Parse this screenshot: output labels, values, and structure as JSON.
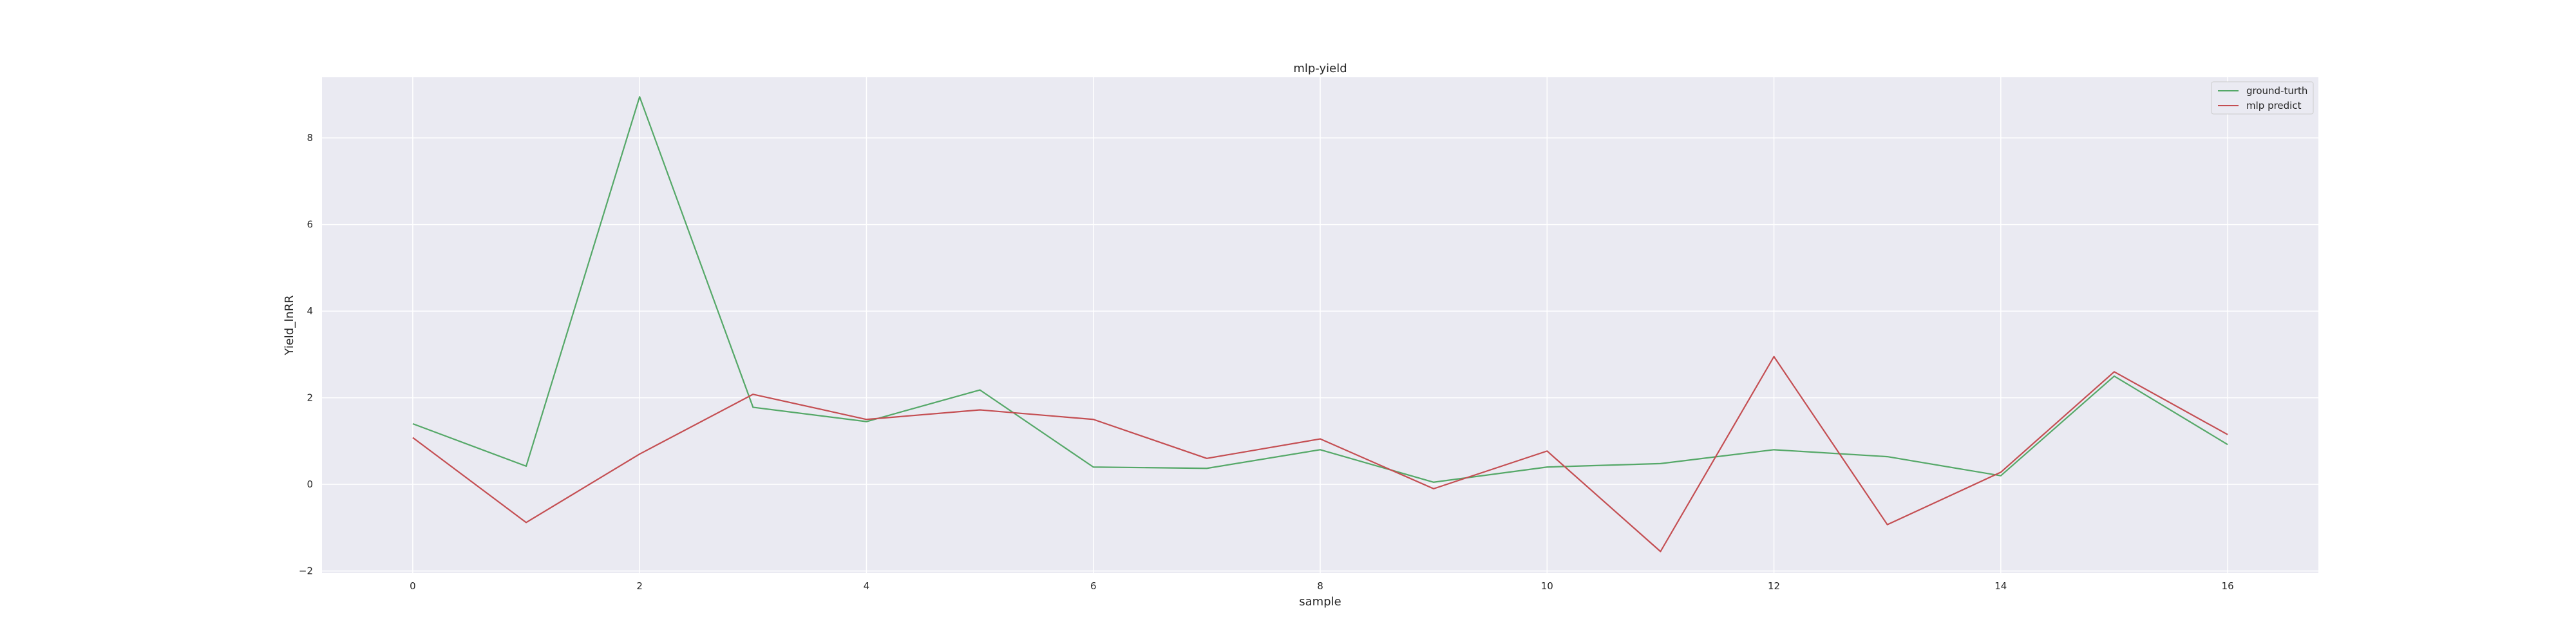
{
  "chart_data": {
    "type": "line",
    "title": "mlp-yield",
    "xlabel": "sample",
    "ylabel": "Yield_lnRR",
    "x": [
      0,
      1,
      2,
      3,
      4,
      5,
      6,
      7,
      8,
      9,
      10,
      11,
      12,
      13,
      14,
      15,
      16
    ],
    "x_ticks": [
      0,
      2,
      4,
      6,
      8,
      10,
      12,
      14,
      16
    ],
    "x_tick_labels": [
      "0",
      "2",
      "4",
      "6",
      "8",
      "10",
      "12",
      "14",
      "16"
    ],
    "y_ticks": [
      -2,
      0,
      2,
      4,
      6,
      8
    ],
    "y_tick_labels": [
      "−2",
      "0",
      "2",
      "4",
      "6",
      "8"
    ],
    "xlim": [
      -0.8,
      16.8
    ],
    "ylim": [
      -2.05,
      9.4
    ],
    "grid": true,
    "legend_position": "top-right",
    "series": [
      {
        "name": "ground-turth",
        "color": "#55a868",
        "values": [
          1.4,
          0.42,
          8.95,
          1.78,
          1.45,
          2.18,
          0.4,
          0.37,
          0.8,
          0.05,
          0.4,
          0.48,
          0.8,
          0.64,
          0.2,
          2.5,
          0.92
        ]
      },
      {
        "name": "mlp predict",
        "color": "#c44e52",
        "values": [
          1.08,
          -0.88,
          0.7,
          2.08,
          1.5,
          1.72,
          1.5,
          0.6,
          1.05,
          -0.1,
          0.77,
          -1.55,
          2.95,
          -0.93,
          0.28,
          2.6,
          1.15
        ]
      }
    ]
  }
}
